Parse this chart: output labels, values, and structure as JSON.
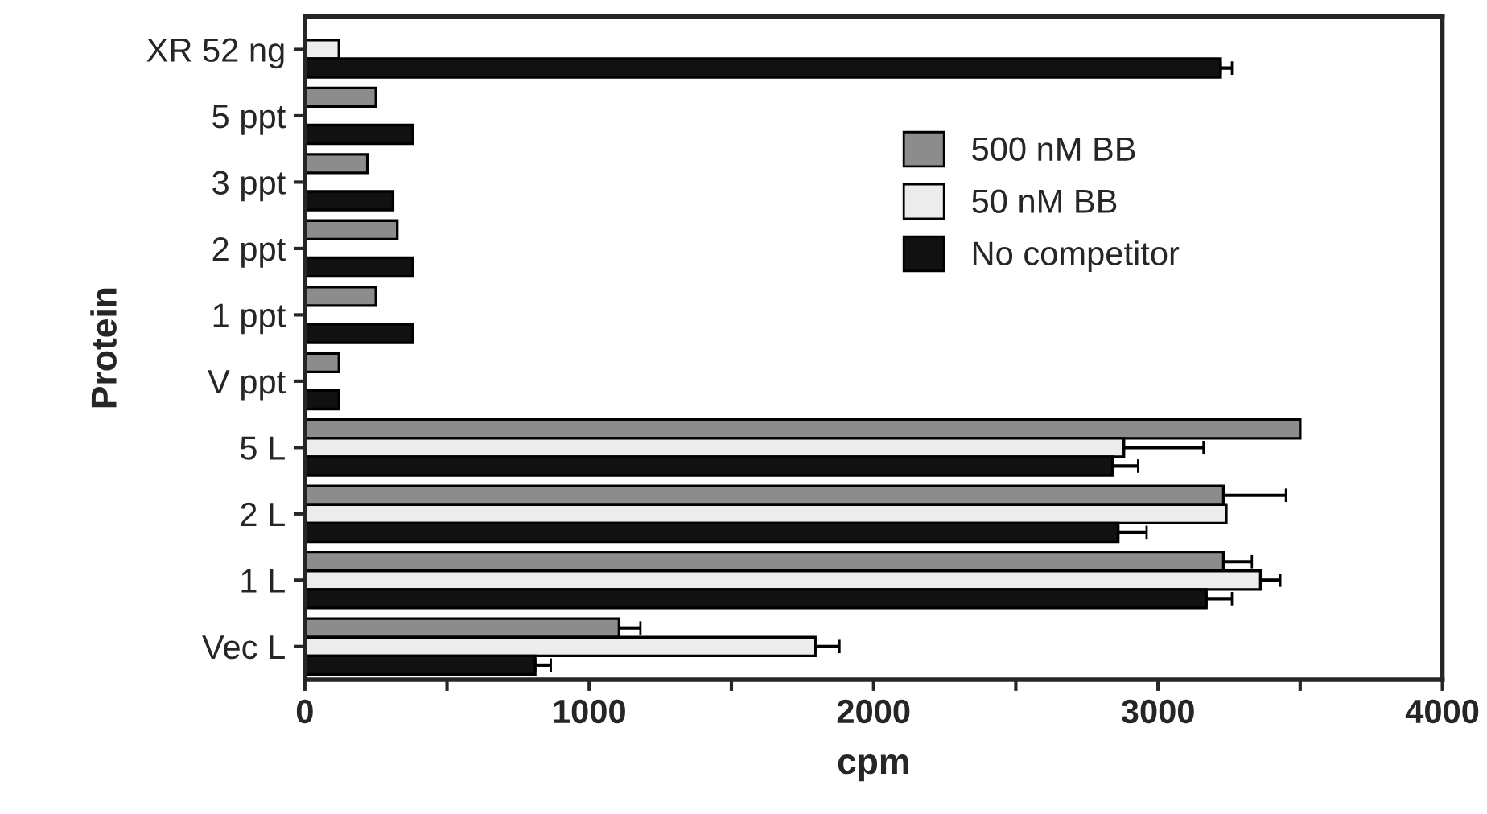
{
  "chart_data": {
    "type": "bar",
    "orientation": "horizontal",
    "xlabel": "cpm",
    "ylabel": "Protein",
    "categories": [
      "XR 52 ng",
      "5 ppt",
      "3 ppt",
      "2 ppt",
      "1 ppt",
      "V ppt",
      "5 L",
      "2 L",
      "1 L",
      "Vec L"
    ],
    "series": [
      {
        "name": "500 nM BB",
        "color": "#8c8c8c",
        "values": [
          null,
          250,
          220,
          325,
          250,
          120,
          3500,
          3230,
          3230,
          1105
        ],
        "errors": [
          null,
          null,
          null,
          null,
          null,
          null,
          null,
          220,
          100,
          75
        ]
      },
      {
        "name": "50 nM BB",
        "color": "#ececec",
        "values": [
          120,
          null,
          null,
          null,
          null,
          null,
          2880,
          3240,
          3360,
          1795
        ],
        "errors": [
          null,
          null,
          null,
          null,
          null,
          null,
          280,
          null,
          70,
          85
        ]
      },
      {
        "name": "No competitor",
        "color": "#111111",
        "values": [
          3220,
          380,
          310,
          380,
          380,
          120,
          2840,
          2860,
          3170,
          810
        ],
        "errors": [
          40,
          null,
          null,
          null,
          null,
          null,
          90,
          100,
          90,
          55
        ]
      }
    ],
    "xlim": [
      0,
      4000
    ],
    "xticks": [
      0,
      {
        "value": 500,
        "label": null
      },
      1000,
      {
        "value": 1500,
        "label": null
      },
      2000,
      {
        "value": 2500,
        "label": null
      },
      3000,
      {
        "value": 3500,
        "label": null
      },
      4000
    ],
    "grid": false,
    "legend": "right"
  }
}
